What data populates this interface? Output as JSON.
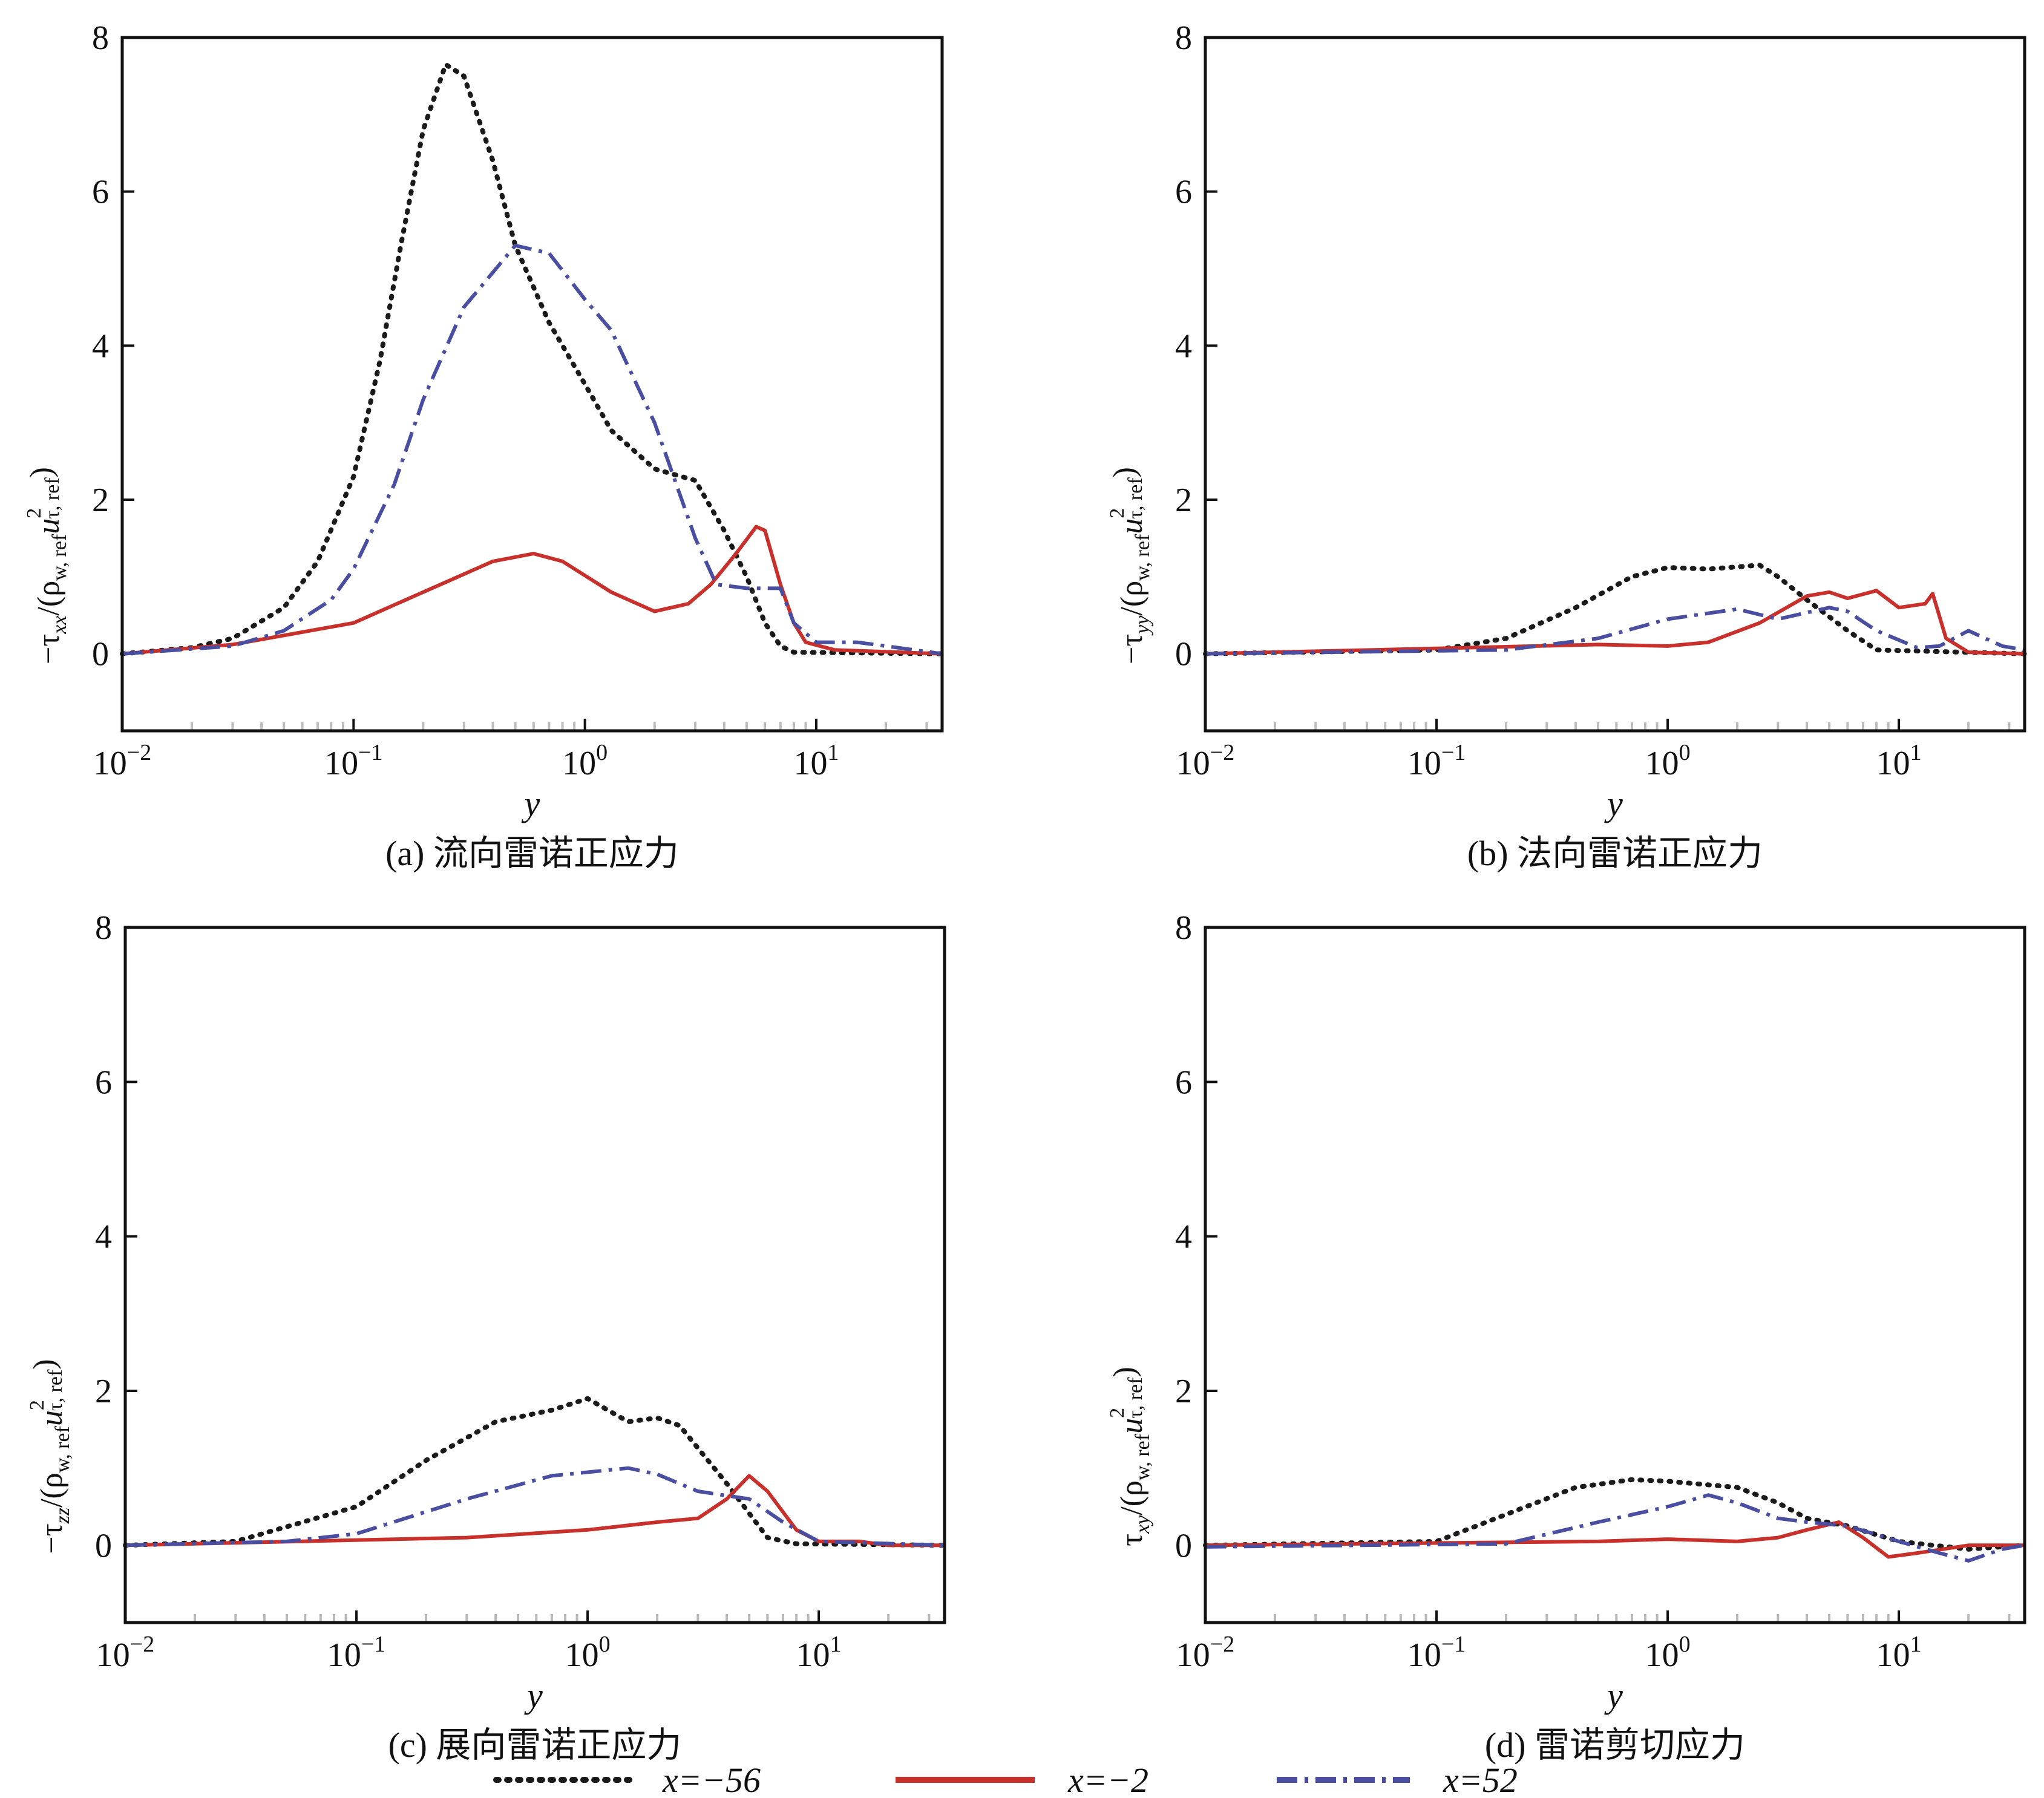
{
  "colors": {
    "x=-56": "#1a1a1a",
    "x=-2": "#c8302c",
    "x=52": "#4a4ea0"
  },
  "legend": {
    "position": "bottom",
    "entries": [
      {
        "label": "x=−56",
        "style": "dotted",
        "color": "#1a1a1a"
      },
      {
        "label": "x=−2",
        "style": "solid",
        "color": "#c8302c"
      },
      {
        "label": "x=52",
        "style": "dashdot",
        "color": "#4a4ea0"
      }
    ]
  },
  "chart_data": [
    {
      "type": "line",
      "caption": "(a) 流向雷诺正应力",
      "xlabel": "y",
      "ylabel_parts": [
        [
          "t",
          "−τ"
        ],
        [
          "sub",
          "xx"
        ],
        [
          "t",
          "/(ρ"
        ],
        [
          "sub",
          "w, ref"
        ],
        [
          "t",
          "u"
        ],
        [
          "sup",
          "2"
        ],
        [
          "sub",
          "τ, ref"
        ],
        [
          "t",
          ")"
        ]
      ],
      "xscale": "log",
      "xlim": [
        0.01,
        35
      ],
      "ylim": [
        -1,
        8
      ],
      "xticks": [
        "10^-2",
        "10^-1",
        "10^0",
        "10^1"
      ],
      "yticks": [
        0,
        2,
        4,
        6,
        8
      ],
      "grid": false,
      "series": [
        {
          "name": "x=−56",
          "x": [
            0.01,
            0.02,
            0.03,
            0.05,
            0.07,
            0.1,
            0.13,
            0.16,
            0.2,
            0.25,
            0.3,
            0.4,
            0.5,
            0.7,
            1,
            1.3,
            2,
            3,
            4,
            5,
            6,
            7,
            8,
            35
          ],
          "y": [
            0,
            0.08,
            0.2,
            0.6,
            1.2,
            2.3,
            3.8,
            5.3,
            6.8,
            7.65,
            7.5,
            6.4,
            5.3,
            4.3,
            3.5,
            2.9,
            2.4,
            2.25,
            1.6,
            1.0,
            0.4,
            0.1,
            0.02,
            0
          ]
        },
        {
          "name": "x=−2",
          "x": [
            0.01,
            0.03,
            0.1,
            0.2,
            0.4,
            0.6,
            0.8,
            1.3,
            2,
            2.8,
            3.5,
            4.5,
            5.5,
            6,
            7,
            8,
            9,
            12,
            35
          ],
          "y": [
            0,
            0.12,
            0.4,
            0.8,
            1.2,
            1.3,
            1.2,
            0.8,
            0.55,
            0.65,
            0.9,
            1.3,
            1.65,
            1.6,
            0.9,
            0.4,
            0.15,
            0.05,
            0
          ]
        },
        {
          "name": "x=52",
          "x": [
            0.01,
            0.03,
            0.05,
            0.08,
            0.1,
            0.15,
            0.2,
            0.3,
            0.5,
            0.7,
            1,
            1.3,
            2,
            3,
            3.7,
            5,
            7,
            8,
            10,
            15,
            20,
            35
          ],
          "y": [
            0,
            0.1,
            0.3,
            0.7,
            1.1,
            2.2,
            3.3,
            4.5,
            5.3,
            5.2,
            4.6,
            4.2,
            3.0,
            1.5,
            0.9,
            0.85,
            0.85,
            0.4,
            0.15,
            0.15,
            0.1,
            0
          ]
        }
      ]
    },
    {
      "type": "line",
      "caption": "(b) 法向雷诺正应力",
      "xlabel": "y",
      "ylabel_parts": [
        [
          "t",
          "−τ"
        ],
        [
          "sub",
          "yy"
        ],
        [
          "t",
          "/(ρ"
        ],
        [
          "sub",
          "w, ref"
        ],
        [
          "t",
          "u"
        ],
        [
          "sup",
          "2"
        ],
        [
          "sub",
          "τ, ref"
        ],
        [
          "t",
          ")"
        ]
      ],
      "xscale": "log",
      "xlim": [
        0.01,
        35
      ],
      "ylim": [
        -1,
        8
      ],
      "xticks": [
        "10^-2",
        "10^-1",
        "10^0",
        "10^1"
      ],
      "yticks": [
        0,
        2,
        4,
        6,
        8
      ],
      "grid": false,
      "series": [
        {
          "name": "x=−56",
          "x": [
            0.01,
            0.1,
            0.2,
            0.4,
            0.7,
            1,
            1.5,
            2.5,
            3,
            4,
            6,
            8,
            35
          ],
          "y": [
            0,
            0.05,
            0.2,
            0.6,
            1.0,
            1.12,
            1.1,
            1.15,
            1.0,
            0.7,
            0.3,
            0.05,
            0
          ]
        },
        {
          "name": "x=−2",
          "x": [
            0.01,
            0.1,
            0.5,
            1,
            1.5,
            2.5,
            4,
            5,
            6,
            8,
            10,
            13,
            14,
            16,
            20,
            35
          ],
          "y": [
            0,
            0.07,
            0.12,
            0.1,
            0.15,
            0.4,
            0.75,
            0.8,
            0.72,
            0.82,
            0.6,
            0.65,
            0.78,
            0.2,
            0.02,
            0
          ]
        },
        {
          "name": "x=52",
          "x": [
            0.01,
            0.2,
            0.5,
            1,
            2,
            3,
            5,
            6,
            8,
            12,
            15,
            20,
            28,
            35
          ],
          "y": [
            0,
            0.05,
            0.2,
            0.45,
            0.58,
            0.45,
            0.6,
            0.55,
            0.3,
            0.08,
            0.1,
            0.3,
            0.1,
            0.05
          ]
        }
      ]
    },
    {
      "type": "line",
      "caption": "(c) 展向雷诺正应力",
      "xlabel": "y",
      "ylabel_parts": [
        [
          "t",
          "−τ"
        ],
        [
          "sub",
          "zz"
        ],
        [
          "t",
          "/(ρ"
        ],
        [
          "sub",
          "w, ref"
        ],
        [
          "t",
          "u"
        ],
        [
          "sup",
          "2"
        ],
        [
          "sub",
          "τ, ref"
        ],
        [
          "t",
          ")"
        ]
      ],
      "xscale": "log",
      "xlim": [
        0.01,
        35
      ],
      "ylim": [
        -1,
        8
      ],
      "xticks": [
        "10^-2",
        "10^-1",
        "10^0",
        "10^1"
      ],
      "yticks": [
        0,
        2,
        4,
        6,
        8
      ],
      "grid": false,
      "series": [
        {
          "name": "x=−56",
          "x": [
            0.01,
            0.03,
            0.1,
            0.2,
            0.4,
            0.7,
            1,
            1.5,
            2,
            2.5,
            4,
            6,
            8,
            35
          ],
          "y": [
            0,
            0.05,
            0.5,
            1.1,
            1.6,
            1.75,
            1.9,
            1.6,
            1.65,
            1.55,
            0.8,
            0.1,
            0.02,
            0
          ]
        },
        {
          "name": "x=−2",
          "x": [
            0.01,
            0.3,
            1,
            2,
            3,
            4,
            5,
            6,
            8,
            10,
            15,
            20,
            35
          ],
          "y": [
            0,
            0.1,
            0.2,
            0.3,
            0.35,
            0.6,
            0.9,
            0.7,
            0.2,
            0.05,
            0.05,
            0,
            0
          ]
        },
        {
          "name": "x=52",
          "x": [
            0.01,
            0.05,
            0.1,
            0.3,
            0.7,
            1.5,
            2,
            3,
            5,
            7,
            10,
            35
          ],
          "y": [
            0,
            0.05,
            0.15,
            0.6,
            0.9,
            1.0,
            0.92,
            0.7,
            0.6,
            0.3,
            0.05,
            0
          ]
        }
      ]
    },
    {
      "type": "line",
      "caption": "(d) 雷诺剪切应力",
      "xlabel": "y",
      "ylabel_parts": [
        [
          "t",
          "τ"
        ],
        [
          "sub",
          "xy"
        ],
        [
          "t",
          "/(ρ"
        ],
        [
          "sub",
          "w, ref"
        ],
        [
          "t",
          "u"
        ],
        [
          "sup",
          "2"
        ],
        [
          "sub",
          "τ, ref"
        ],
        [
          "t",
          ")"
        ]
      ],
      "xscale": "log",
      "xlim": [
        0.01,
        35
      ],
      "ylim": [
        -1,
        8
      ],
      "xticks": [
        "10^-2",
        "10^-1",
        "10^0",
        "10^1"
      ],
      "yticks": [
        0,
        2,
        4,
        6,
        8
      ],
      "grid": false,
      "series": [
        {
          "name": "x=−56",
          "x": [
            0.01,
            0.1,
            0.2,
            0.4,
            0.7,
            1,
            2,
            3,
            4,
            6,
            10,
            20,
            35
          ],
          "y": [
            0,
            0.05,
            0.4,
            0.75,
            0.85,
            0.83,
            0.75,
            0.55,
            0.35,
            0.25,
            0.05,
            -0.05,
            0
          ]
        },
        {
          "name": "x=−2",
          "x": [
            0.01,
            0.5,
            1,
            2,
            3,
            4,
            5.5,
            7,
            9,
            12,
            20,
            35
          ],
          "y": [
            0,
            0.05,
            0.08,
            0.05,
            0.1,
            0.2,
            0.3,
            0.1,
            -0.15,
            -0.1,
            0,
            0
          ]
        },
        {
          "name": "x=52",
          "x": [
            0.01,
            0.2,
            0.5,
            1,
            1.5,
            2,
            3,
            4,
            6,
            10,
            15,
            20,
            28,
            35
          ],
          "y": [
            -0.02,
            0.02,
            0.3,
            0.5,
            0.65,
            0.55,
            0.35,
            0.3,
            0.25,
            0.05,
            -0.1,
            -0.2,
            -0.05,
            0
          ]
        }
      ]
    }
  ]
}
